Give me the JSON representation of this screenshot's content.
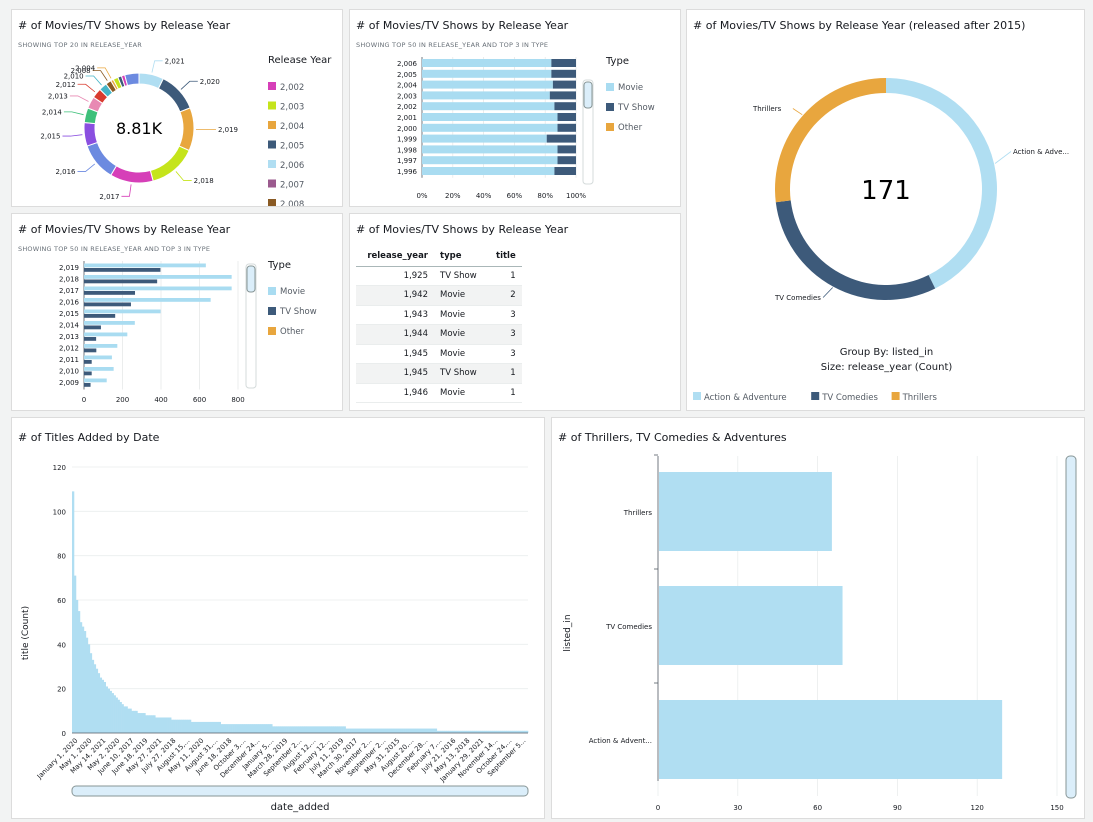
{
  "panels": {
    "donut_small": {
      "title": "# of Movies/TV Shows by Release Year",
      "subtitle": "SHOWING TOP 20 IN RELEASE_YEAR",
      "center": "8.81K",
      "legend_title": "Release Year"
    },
    "bar_stack": {
      "title": "# of Movies/TV Shows by Release Year",
      "subtitle": "SHOWING TOP 50 IN RELEASE_YEAR AND TOP 3 IN TYPE",
      "legend_title": "Type"
    },
    "bar_cluster": {
      "title": "# of Movies/TV Shows by Release Year",
      "subtitle": "SHOWING TOP 50 IN RELEASE_YEAR AND TOP 3 IN TYPE",
      "legend_title": "Type"
    },
    "table": {
      "title": "# of Movies/TV Shows by Release Year"
    },
    "donut_large": {
      "title": "# of Movies/TV Shows by Release Year (released after 2015)",
      "center": "171",
      "group_by": "Group By: listed_in",
      "size": "Size: release_year (Count)"
    },
    "titles_by_date": {
      "title": "# of Titles Added by Date"
    },
    "thrillers_bar": {
      "title": "# of Thrillers, TV Comedies & Adventures"
    }
  },
  "colors": {
    "movie": "#a9dcf1",
    "tv_show": "#3d5a7a",
    "other": "#e8a63e",
    "light_blue": "#b0def2"
  },
  "table": {
    "columns": [
      "release_year",
      "type",
      "title"
    ],
    "rows": [
      [
        "1,925",
        "TV Show",
        "1"
      ],
      [
        "1,942",
        "Movie",
        "2"
      ],
      [
        "1,943",
        "Movie",
        "3"
      ],
      [
        "1,944",
        "Movie",
        "3"
      ],
      [
        "1,945",
        "Movie",
        "3"
      ],
      [
        "1,945",
        "TV Show",
        "1"
      ],
      [
        "1,946",
        "Movie",
        "1"
      ]
    ]
  },
  "chart_data": [
    {
      "id": "donut_small",
      "type": "pie",
      "title": "# of Movies/TV Shows by Release Year",
      "total_label": "8.81K",
      "slices": [
        {
          "label": "2,021",
          "value": 592,
          "color": "#b0def2"
        },
        {
          "label": "2,020",
          "value": 953,
          "color": "#3d5a7a"
        },
        {
          "label": "2,019",
          "value": 1030,
          "color": "#e8a63e"
        },
        {
          "label": "2,018",
          "value": 1147,
          "color": "#c5e41b"
        },
        {
          "label": "2,017",
          "value": 1032,
          "color": "#d63fb8"
        },
        {
          "label": "2,016",
          "value": 902,
          "color": "#6c8ae0"
        },
        {
          "label": "2,015",
          "value": 560,
          "color": "#8a4fe0"
        },
        {
          "label": "2,014",
          "value": 352,
          "color": "#3ec07a"
        },
        {
          "label": "2,013",
          "value": 288,
          "color": "#e889b3"
        },
        {
          "label": "2,012",
          "value": 237,
          "color": "#d93b2f"
        },
        {
          "label": "2,010",
          "value": 194,
          "color": "#45b5c8"
        },
        {
          "label": "2,008",
          "value": 136,
          "color": "#8a5a24"
        },
        {
          "label": "2,004",
          "value": 64,
          "color": "#e8a63e"
        },
        {
          "label": "",
          "value": 120,
          "color": "#c5e41b"
        },
        {
          "label": "",
          "value": 90,
          "color": "#3d5a7a"
        },
        {
          "label": "",
          "value": 80,
          "color": "#d63fb8"
        },
        {
          "label": "",
          "value": 340,
          "color": "#6c8ae0"
        }
      ],
      "legend": [
        {
          "label": "2,002",
          "color": "#d63fb8"
        },
        {
          "label": "2,003",
          "color": "#c5e41b"
        },
        {
          "label": "2,004",
          "color": "#e8a63e"
        },
        {
          "label": "2,005",
          "color": "#3d5a7a"
        },
        {
          "label": "2,006",
          "color": "#b0def2"
        },
        {
          "label": "2,007",
          "color": "#9b5a8e"
        },
        {
          "label": "2,008",
          "color": "#8a5a24"
        }
      ]
    },
    {
      "id": "bar_stack",
      "type": "bar",
      "orientation": "horizontal",
      "stacked_percent": true,
      "categories": [
        "2,006",
        "2,005",
        "2,004",
        "2,003",
        "2,002",
        "2,001",
        "2,000",
        "1,999",
        "1,998",
        "1,997",
        "1,996"
      ],
      "series": [
        {
          "name": "Movie",
          "values": [
            84,
            84,
            85,
            83,
            86,
            88,
            88,
            81,
            88,
            88,
            86
          ]
        },
        {
          "name": "TV Show",
          "values": [
            16,
            16,
            15,
            17,
            14,
            12,
            12,
            19,
            12,
            12,
            14
          ]
        }
      ],
      "x_ticks": [
        "0%",
        "20%",
        "40%",
        "60%",
        "80%",
        "100%"
      ],
      "legend": [
        "Movie",
        "TV Show",
        "Other"
      ]
    },
    {
      "id": "bar_cluster",
      "type": "bar",
      "orientation": "horizontal",
      "categories": [
        "2,019",
        "2,018",
        "2,017",
        "2,016",
        "2,015",
        "2,014",
        "2,013",
        "2,012",
        "2,011",
        "2,010",
        "2,009"
      ],
      "series": [
        {
          "name": "Movie",
          "values": [
            633,
            767,
            767,
            658,
            398,
            264,
            225,
            173,
            145,
            154,
            118
          ]
        },
        {
          "name": "TV Show",
          "values": [
            397,
            380,
            265,
            244,
            162,
            88,
            63,
            64,
            40,
            40,
            34
          ]
        }
      ],
      "x_ticks": [
        "0",
        "200",
        "400",
        "600",
        "800"
      ],
      "xlim": [
        0,
        800
      ],
      "legend": [
        "Movie",
        "TV Show",
        "Other"
      ]
    },
    {
      "id": "donut_large",
      "type": "pie",
      "total_label": "171",
      "slices": [
        {
          "label": "Action & Adve...",
          "value": 73,
          "color": "#b0def2"
        },
        {
          "label": "TV Comedies",
          "value": 52,
          "color": "#3d5a7a"
        },
        {
          "label": "Thrillers",
          "value": 46,
          "color": "#e8a63e"
        }
      ],
      "legend": [
        "Action & Adventure",
        "TV Comedies",
        "Thrillers"
      ]
    },
    {
      "id": "titles_by_date",
      "type": "bar",
      "xlabel": "date_added",
      "ylabel": "title (Count)",
      "ylim": [
        0,
        120
      ],
      "y_ticks": [
        "0",
        "20",
        "40",
        "60",
        "80",
        "100",
        "120"
      ],
      "x_tick_labels": [
        "January 1, 2020",
        "May 1, 2020",
        "May 14, 2021",
        "May 2, 2020",
        "June 10, 2017",
        "June 18, 2019",
        "May 27, 2021",
        "July 27, 2018",
        "August 15,...",
        "May 11, 2020",
        "August 31,...",
        "June 18, 2018",
        "October 3,...",
        "December 24...",
        "January 5,...",
        "March 28, 2019",
        "September 2...",
        "August 12,...",
        "February 12...",
        "July 11, 2019",
        "March 30, 2017",
        "November 2...",
        "September 2...",
        "May 31, 2015",
        "August 20,...",
        "December 28...",
        "February 7,...",
        "July 21, 2016",
        "May 13, 2018",
        "January 29, 2021",
        "November 14...",
        "October 24,...",
        "September 5..."
      ],
      "values": [
        109,
        71,
        60,
        55,
        50,
        48,
        46,
        43,
        40,
        36,
        33,
        31,
        29,
        27,
        25,
        24,
        23,
        21,
        20,
        19,
        18,
        17,
        16,
        15,
        14,
        13,
        12,
        12,
        11,
        11,
        10,
        10,
        10,
        9,
        9,
        9,
        9,
        8,
        8,
        8,
        8,
        8,
        7,
        7,
        7,
        7,
        7,
        7,
        7,
        7,
        6,
        6,
        6,
        6,
        6,
        6,
        6,
        6,
        6,
        6,
        5,
        5,
        5,
        5,
        5,
        5,
        5,
        5,
        5,
        5,
        5,
        5,
        5,
        5,
        5,
        4,
        4,
        4,
        4,
        4,
        4,
        4,
        4,
        4,
        4,
        4,
        4,
        4,
        4,
        4,
        4,
        4,
        4,
        4,
        4,
        4,
        4,
        4,
        4,
        4,
        4,
        3,
        3,
        3,
        3,
        3,
        3,
        3,
        3,
        3,
        3,
        3,
        3,
        3,
        3,
        3,
        3,
        3,
        3,
        3,
        3,
        3,
        3,
        3,
        3,
        3,
        3,
        3,
        3,
        3,
        3,
        3,
        3,
        3,
        3,
        3,
        3,
        3,
        2,
        2,
        2,
        2,
        2,
        2,
        2,
        2,
        2,
        2,
        2,
        2,
        2,
        2,
        2,
        2,
        2,
        2,
        2,
        2,
        2,
        2,
        2,
        2,
        2,
        2,
        2,
        2,
        2,
        2,
        2,
        2,
        2,
        2,
        2,
        2,
        2,
        2,
        2,
        2,
        2,
        2,
        2,
        2,
        2,
        2,
        1,
        1,
        1,
        1,
        1,
        1,
        1,
        1,
        1,
        1,
        1,
        1,
        1,
        1,
        1,
        1,
        1,
        1,
        1,
        1,
        1,
        1,
        1,
        1,
        1,
        1,
        1,
        1,
        1,
        1,
        1,
        1,
        1,
        1,
        1,
        1,
        1,
        1,
        1,
        1,
        1,
        1,
        1,
        1,
        1,
        1
      ]
    },
    {
      "id": "thrillers_bar",
      "type": "bar",
      "orientation": "horizontal",
      "ylabel": "listed_in",
      "categories": [
        "Thrillers",
        "TV Comedies",
        "Action & Advent..."
      ],
      "values": [
        65,
        69,
        129
      ],
      "xlim": [
        0,
        150
      ],
      "x_ticks": [
        "0",
        "30",
        "60",
        "90",
        "120",
        "150"
      ]
    }
  ]
}
